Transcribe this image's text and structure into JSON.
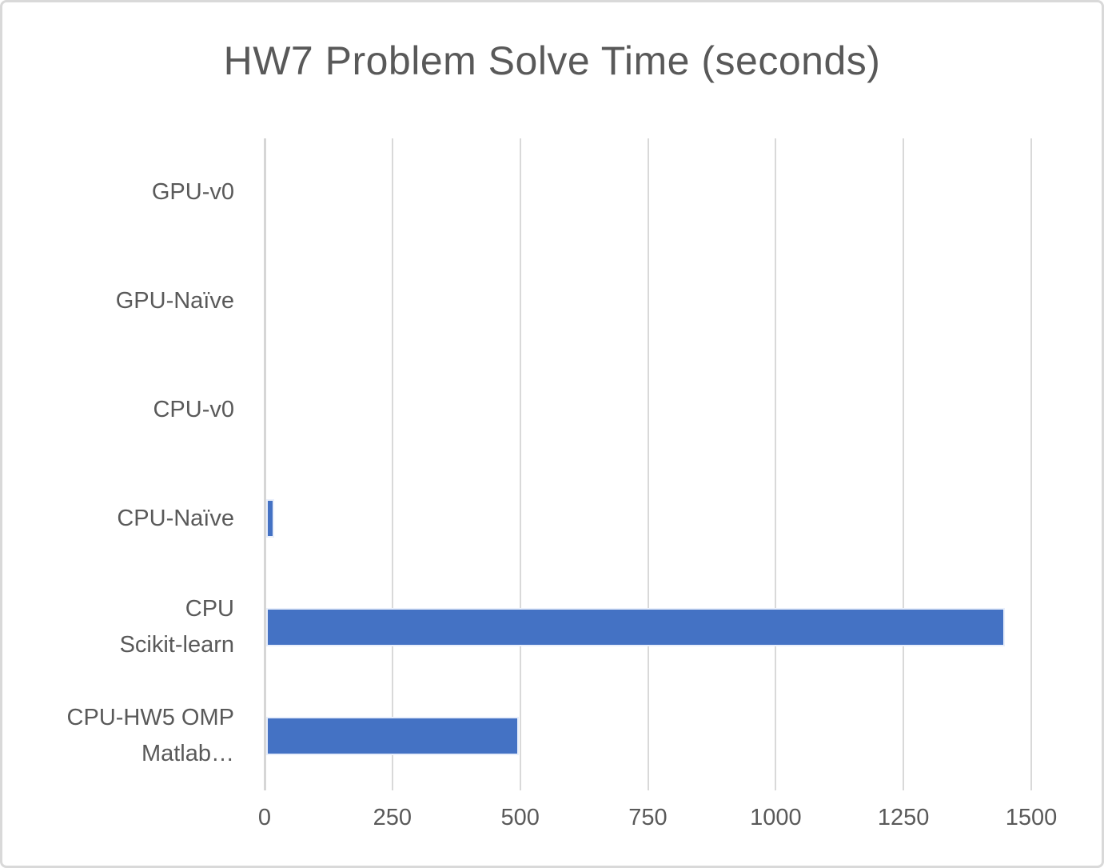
{
  "window": {
    "background": "#ffffff",
    "frame_border_color": "#d9d9d9"
  },
  "chart_data": {
    "type": "bar",
    "orientation": "horizontal",
    "title": "HW7 Problem Solve Time (seconds)",
    "categories": [
      "GPU-v0",
      "GPU-Naïve",
      "CPU-v0",
      "CPU-Naïve",
      "CPU\nScikit-learn",
      "CPU-HW5 OMP\nMatlab…"
    ],
    "values": [
      0,
      0,
      0,
      15,
      1445,
      495
    ],
    "xlabel": "",
    "ylabel": "",
    "xlim": [
      0,
      1500
    ],
    "xticks": [
      0,
      250,
      500,
      750,
      1000,
      1250,
      1500
    ],
    "grid": true,
    "legend": "none",
    "colors": {
      "bar": "#4472c4",
      "gridline": "#d9d9d9",
      "axis_line": "#d6d6d6",
      "text": "#595959"
    }
  }
}
